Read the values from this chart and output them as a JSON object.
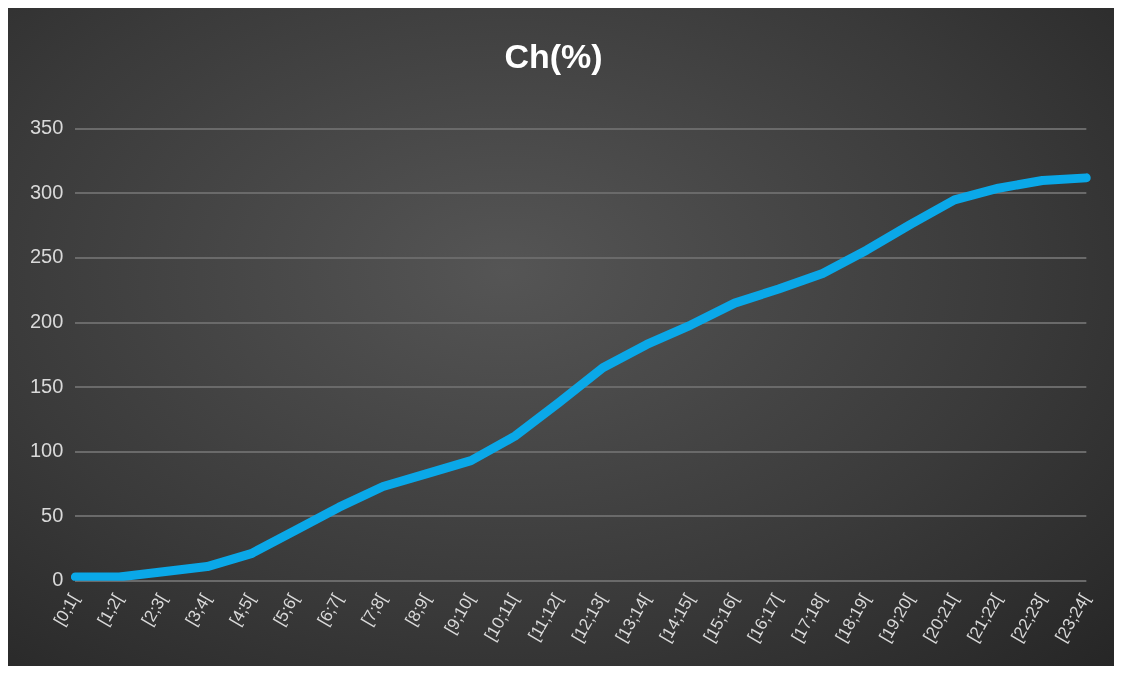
{
  "chart_data": {
    "type": "line",
    "title": "Ch(%)",
    "categories": [
      "[0;1[",
      "[1;2[",
      "[2;3[",
      "[3;4[",
      "[4;5[",
      "[5;6[",
      "[6;7[",
      "[7;8[",
      "[8;9[",
      "[9;10[",
      "[10;11[",
      "[11;12[",
      "[12;13[",
      "[13;14[",
      "[14;15[",
      "[15;16[",
      "[16;17[",
      "[17;18[",
      "[18;19[",
      "[19;20[",
      "[20;21[",
      "[21;22[",
      "[22;23[",
      "[23;24["
    ],
    "series": [
      {
        "color": "#0aa8e8",
        "values": [
          3,
          3,
          7,
          11,
          21,
          39,
          57,
          73,
          83,
          93,
          112,
          138,
          165,
          183,
          198,
          215,
          226,
          238,
          256,
          276,
          295,
          304,
          310,
          312
        ]
      }
    ],
    "ylim": [
      0,
      350
    ],
    "yticks": [
      0,
      50,
      100,
      150,
      200,
      250,
      300,
      350
    ],
    "grid": "y",
    "legend": false,
    "marker": "none",
    "line_style": "solid"
  }
}
